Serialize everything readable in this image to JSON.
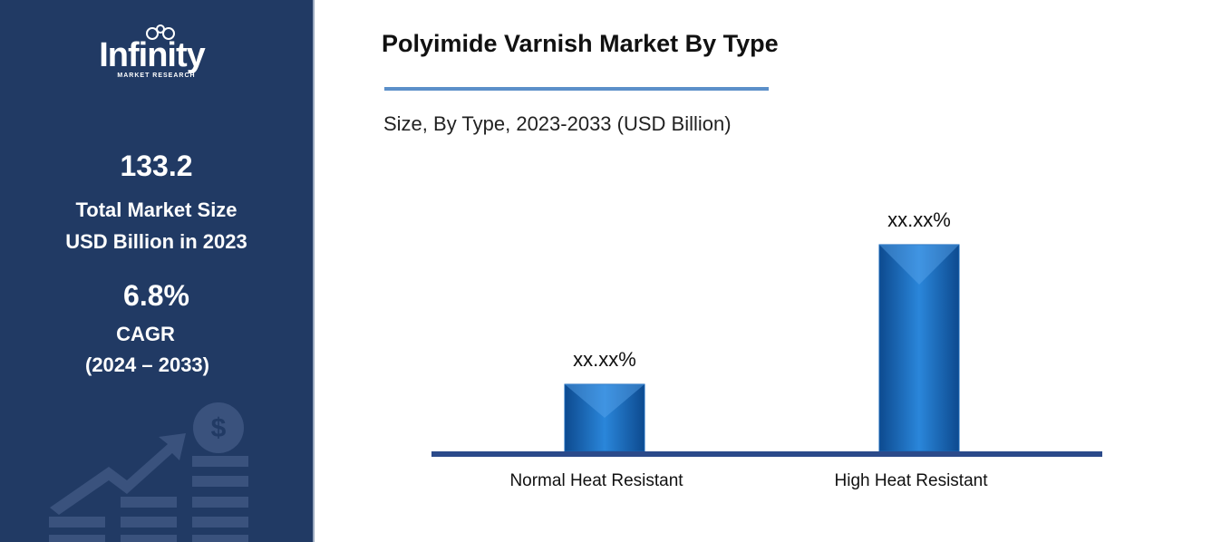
{
  "sidebar": {
    "logo": "Infinity",
    "logo_sub": "MARKET RESEARCH",
    "market_size": "133.2",
    "market_size_label_1": "Total Market Size",
    "market_size_label_2": "USD Billion in 2023",
    "cagr": "6.8%",
    "cagr_label": "CAGR",
    "cagr_period": "(2024 – 2033)"
  },
  "chart_data": {
    "type": "bar",
    "title": "Polyimide Varnish Market By Type",
    "subtitle": "Size, By Type, 2023-2033 (USD Billion)",
    "categories": [
      "Normal Heat Resistant",
      "High Heat Resistant"
    ],
    "values": [
      24.5,
      75.5
    ],
    "value_labels": [
      "xx.xx%",
      "xx.xx%"
    ],
    "color": "#1565b8",
    "ylim": [
      0,
      100
    ]
  }
}
